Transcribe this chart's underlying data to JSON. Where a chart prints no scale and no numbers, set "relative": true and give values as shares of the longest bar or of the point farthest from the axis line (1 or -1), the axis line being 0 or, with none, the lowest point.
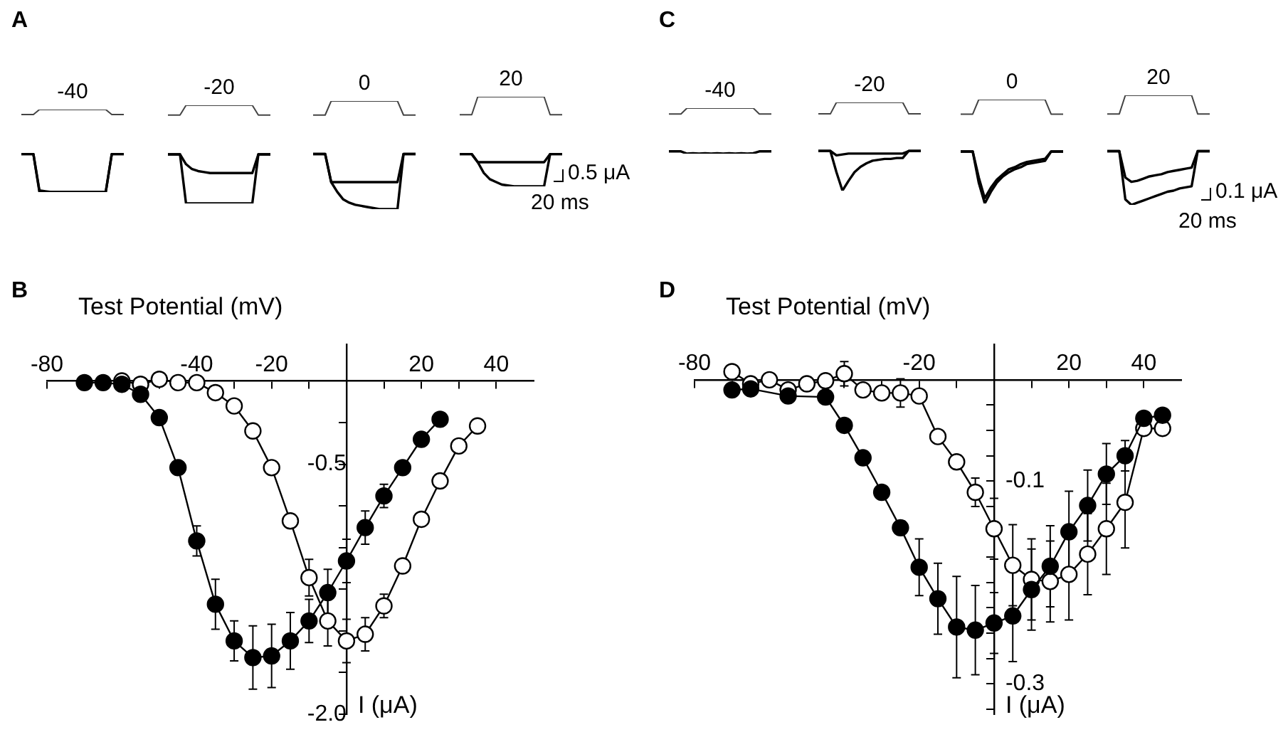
{
  "chart_data": [
    {
      "type": "line",
      "title": "A",
      "subtitle": "-40",
      "relative": true,
      "categories": [
        null,
        null,
        null,
        null,
        null,
        null,
        null,
        null,
        null,
        null,
        null,
        null,
        null,
        null,
        null,
        null,
        null,
        null
      ],
      "series": [
        {
          "color": "#444444",
          "values": [
            0.94,
            0.94,
            0.94,
            1,
            1,
            1,
            1,
            1,
            1,
            1,
            1,
            1,
            1,
            1,
            1,
            0.94,
            0.94,
            0.94
          ]
        },
        {
          "color": "#000000",
          "values": [
            0.46,
            0.46,
            0.46,
            0,
            0,
            0,
            0,
            0,
            0,
            0,
            0,
            0,
            0,
            0,
            0,
            0.46,
            0.46,
            0.46
          ]
        },
        {
          "color": "#000000",
          "values": [
            0.46,
            0.46,
            0.46,
            0.02,
            0.01,
            0,
            0,
            0,
            0,
            0,
            0,
            0,
            0,
            0,
            0,
            0.46,
            0.46,
            0.46
          ]
        }
      ]
    },
    {
      "type": "line",
      "subtitle": "-20",
      "relative": true,
      "categories": [
        null,
        null,
        null,
        null,
        null,
        null,
        null,
        null,
        null,
        null,
        null,
        null,
        null,
        null,
        null,
        null,
        null,
        null
      ],
      "series": [
        {
          "color": "#444444",
          "values": [
            0.9,
            0.9,
            0.9,
            1,
            1,
            1,
            1,
            1,
            1,
            1,
            1,
            1,
            1,
            1,
            1,
            0.9,
            0.9,
            0.9
          ]
        },
        {
          "color": "#000000",
          "values": [
            0.5,
            0.5,
            0.5,
            0,
            0,
            0,
            0,
            0,
            0,
            0,
            0,
            0,
            0,
            0,
            0,
            0.5,
            0.5,
            0.5
          ]
        },
        {
          "color": "#000000",
          "values": [
            0.5,
            0.5,
            0.5,
            0.4,
            0.35,
            0.33,
            0.32,
            0.31,
            0.31,
            0.31,
            0.31,
            0.31,
            0.31,
            0.31,
            0.31,
            0.5,
            0.5,
            0.5
          ]
        }
      ]
    },
    {
      "type": "line",
      "subtitle": "0",
      "relative": true,
      "categories": [
        null,
        null,
        null,
        null,
        null,
        null,
        null,
        null,
        null,
        null,
        null,
        null,
        null,
        null,
        null,
        null,
        null,
        null
      ],
      "series": [
        {
          "color": "#444444",
          "values": [
            0.87,
            0.87,
            0.87,
            1,
            1,
            1,
            1,
            1,
            1,
            1,
            1,
            1,
            1,
            1,
            1,
            0.87,
            0.87,
            0.87
          ]
        },
        {
          "color": "#000000",
          "values": [
            0.51,
            0.51,
            0.51,
            0.25,
            0.25,
            0.25,
            0.25,
            0.25,
            0.25,
            0.25,
            0.25,
            0.25,
            0.25,
            0.25,
            0.25,
            0.51,
            0.51,
            0.51
          ]
        },
        {
          "color": "#000000",
          "values": [
            0.51,
            0.51,
            0.51,
            0.25,
            0.16,
            0.09,
            0.06,
            0.04,
            0.03,
            0.02,
            0.01,
            0,
            0,
            0,
            0,
            0.51,
            0.51,
            0.51
          ]
        }
      ]
    },
    {
      "type": "line",
      "subtitle": "20",
      "relative": true,
      "annotations": [
        "0.5 μA",
        "20 ms"
      ],
      "categories": [
        null,
        null,
        null,
        null,
        null,
        null,
        null,
        null,
        null,
        null,
        null,
        null,
        null,
        null,
        null,
        null,
        null,
        null
      ],
      "series": [
        {
          "color": "#444444",
          "values": [
            0.8,
            0.8,
            0.8,
            1,
            1,
            1,
            1,
            1,
            1,
            1,
            1,
            1,
            1,
            1,
            1,
            0.8,
            0.8,
            0.8
          ]
        },
        {
          "color": "#000000",
          "values": [
            0.36,
            0.36,
            0.36,
            0.27,
            0.27,
            0.27,
            0.27,
            0.27,
            0.27,
            0.27,
            0.27,
            0.27,
            0.27,
            0.27,
            0.27,
            0.36,
            0.36,
            0.36
          ]
        },
        {
          "color": "#000000",
          "values": [
            0.36,
            0.36,
            0.36,
            0.27,
            0.15,
            0.08,
            0.05,
            0.02,
            0.01,
            0,
            0,
            0,
            0,
            0,
            0,
            0.36,
            0.36,
            0.36
          ]
        }
      ]
    },
    {
      "type": "line",
      "title": "C",
      "subtitle": "-40",
      "relative": true,
      "categories": [
        null,
        null,
        null,
        null,
        null,
        null,
        null,
        null,
        null,
        null,
        null,
        null,
        null,
        null,
        null,
        null,
        null,
        null
      ],
      "series": [
        {
          "color": "#444444",
          "values": [
            0.87,
            0.87,
            0.87,
            1,
            1,
            1,
            1,
            1,
            1,
            1,
            1,
            1,
            1,
            1,
            1,
            0.87,
            0.87,
            0.87
          ]
        },
        {
          "color": "#000000",
          "values": [
            0.05,
            0.05,
            0.05,
            0,
            0.01,
            0,
            0.01,
            0,
            0.01,
            0,
            0.01,
            0,
            0.01,
            0,
            0.01,
            0.05,
            0.05,
            0.05
          ]
        }
      ]
    },
    {
      "type": "line",
      "subtitle": "-20",
      "relative": true,
      "categories": [
        null,
        null,
        null,
        null,
        null,
        null,
        null,
        null,
        null,
        null,
        null,
        null,
        null,
        null,
        null,
        null,
        null,
        null
      ],
      "series": [
        {
          "color": "#444444",
          "values": [
            0.87,
            0.87,
            0.87,
            1,
            1,
            1,
            1,
            1,
            1,
            1,
            1,
            1,
            1,
            1,
            1,
            0.87,
            0.87,
            0.87
          ]
        },
        {
          "color": "#000000",
          "values": [
            0.45,
            0.45,
            0.45,
            0.21,
            0,
            0.11,
            0.21,
            0.27,
            0.31,
            0.34,
            0.35,
            0.36,
            0.36,
            0.37,
            0.37,
            0.45,
            0.45,
            0.45
          ]
        },
        {
          "color": "#000000",
          "values": [
            0.45,
            0.45,
            0.45,
            0.4,
            0.41,
            0.42,
            0.42,
            0.42,
            0.42,
            0.42,
            0.42,
            0.42,
            0.42,
            0.42,
            0.42,
            0.45,
            0.45,
            0.45
          ]
        }
      ]
    },
    {
      "type": "line",
      "subtitle": "0",
      "relative": true,
      "categories": [
        null,
        null,
        null,
        null,
        null,
        null,
        null,
        null,
        null,
        null,
        null,
        null,
        null,
        null,
        null,
        null,
        null,
        null
      ],
      "series": [
        {
          "color": "#444444",
          "values": [
            0.86,
            0.86,
            0.86,
            1,
            1,
            1,
            1,
            1,
            1,
            1,
            1,
            1,
            1,
            1,
            1,
            0.86,
            0.86,
            0.86
          ]
        },
        {
          "color": "#000000",
          "values": [
            0.5,
            0.5,
            0.5,
            0.2,
            0,
            0.11,
            0.2,
            0.26,
            0.3,
            0.33,
            0.35,
            0.38,
            0.39,
            0.4,
            0.41,
            0.5,
            0.5,
            0.5
          ]
        },
        {
          "color": "#000000",
          "values": [
            0.5,
            0.5,
            0.5,
            0.25,
            0.05,
            0.15,
            0.23,
            0.28,
            0.33,
            0.35,
            0.38,
            0.4,
            0.41,
            0.42,
            0.43,
            0.5,
            0.5,
            0.5
          ]
        }
      ]
    },
    {
      "type": "line",
      "subtitle": "20",
      "relative": true,
      "annotations": [
        "0.1 μA",
        "20 ms"
      ],
      "categories": [
        null,
        null,
        null,
        null,
        null,
        null,
        null,
        null,
        null,
        null,
        null,
        null,
        null,
        null,
        null,
        null,
        null,
        null
      ],
      "series": [
        {
          "color": "#444444",
          "values": [
            0.83,
            0.83,
            0.83,
            1,
            1,
            1,
            1,
            1,
            1,
            1,
            1,
            1,
            1,
            1,
            1,
            0.83,
            0.83,
            0.83
          ]
        },
        {
          "color": "#000000",
          "values": [
            0.49,
            0.49,
            0.49,
            0.05,
            0,
            0.02,
            0.04,
            0.06,
            0.08,
            0.1,
            0.12,
            0.13,
            0.15,
            0.16,
            0.17,
            0.49,
            0.49,
            0.49
          ]
        },
        {
          "color": "#000000",
          "values": [
            0.49,
            0.49,
            0.49,
            0.25,
            0.21,
            0.22,
            0.24,
            0.26,
            0.27,
            0.28,
            0.3,
            0.31,
            0.32,
            0.33,
            0.34,
            0.49,
            0.49,
            0.49
          ]
        }
      ]
    },
    {
      "type": "line",
      "title": "B",
      "xlabel": "Test Potential (mV)",
      "ylabel": "I (μA)",
      "marker": "circle",
      "xlim": [
        -80,
        50
      ],
      "xticks": [
        -80,
        {
          "value": -70,
          "label": null
        },
        {
          "value": -60,
          "label": null
        },
        {
          "value": -50,
          "label": null
        },
        -40,
        {
          "value": -30,
          "label": null
        },
        -20,
        {
          "value": -10,
          "label": null
        },
        {
          "value": 10,
          "label": null
        },
        20,
        {
          "value": 30,
          "label": null
        },
        40
      ],
      "ylim": [
        -2,
        0.22
      ],
      "yticks": [
        {
          "value": -2,
          "label": "-2.0"
        },
        {
          "value": -1.75,
          "label": null
        },
        {
          "value": -1.5,
          "label": null
        },
        {
          "value": -1.25,
          "label": null
        },
        {
          "value": -1,
          "label": null
        },
        {
          "value": -0.75,
          "label": null
        },
        -0.5,
        {
          "value": -0.25,
          "label": null
        }
      ],
      "series": [
        {
          "color": "#000000",
          "x": [
            -70,
            -65,
            -60,
            -55,
            -50,
            -45,
            -40,
            -35,
            -30,
            -25,
            -20,
            -15,
            -10,
            -5,
            0,
            5,
            10,
            15,
            20,
            25
          ],
          "values": [
            -0.01,
            -0.01,
            -0.02,
            -0.08,
            -0.22,
            -0.52,
            -0.96,
            -1.34,
            -1.56,
            -1.66,
            -1.65,
            -1.56,
            -1.44,
            -1.27,
            -1.08,
            -0.88,
            -0.69,
            -0.52,
            -0.35,
            -0.23
          ],
          "errors": [
            null,
            null,
            null,
            null,
            null,
            null,
            0.09,
            0.15,
            0.12,
            0.19,
            0.19,
            0.17,
            0.13,
            0.14,
            0.13,
            0.1,
            0.07,
            null,
            null,
            null
          ]
        },
        {
          "color": "#000000",
          "x": [
            -60,
            -55,
            -50,
            -45,
            -40,
            -35,
            -30,
            -25,
            -20,
            -15,
            -10,
            -5,
            0,
            5,
            10,
            15,
            20,
            25,
            30,
            35
          ],
          "values": [
            0,
            -0.02,
            0.01,
            -0.01,
            -0.01,
            -0.07,
            -0.15,
            -0.3,
            -0.52,
            -0.84,
            -1.18,
            -1.44,
            -1.56,
            -1.52,
            -1.35,
            -1.11,
            -0.83,
            -0.6,
            -0.39,
            -0.27
          ],
          "errors": [
            null,
            null,
            null,
            null,
            null,
            null,
            null,
            null,
            null,
            null,
            0.11,
            0.15,
            0.13,
            0.1,
            0.07,
            null,
            null,
            null,
            null,
            null
          ]
        }
      ]
    },
    {
      "type": "line",
      "title": "D",
      "xlabel": "Test Potential (mV)",
      "ylabel": "I (μA)",
      "marker": "circle",
      "xlim": [
        -80,
        50
      ],
      "xticks": [
        -80,
        {
          "value": -70,
          "label": null
        },
        {
          "value": -60,
          "label": null
        },
        {
          "value": -50,
          "label": null
        },
        {
          "value": -40,
          "label": null
        },
        {
          "value": -30,
          "label": null
        },
        -20,
        {
          "value": -10,
          "label": null
        },
        {
          "value": 10,
          "label": null
        },
        20,
        {
          "value": 30,
          "label": null
        },
        40
      ],
      "ylim": [
        -0.33,
        0.035
      ],
      "yticks": [
        {
          "value": -0.325,
          "label": null
        },
        -0.3,
        {
          "value": -0.275,
          "label": null
        },
        {
          "value": -0.25,
          "label": null
        },
        {
          "value": -0.225,
          "label": null
        },
        {
          "value": -0.2,
          "label": null
        },
        {
          "value": -0.175,
          "label": null
        },
        {
          "value": -0.15,
          "label": null
        },
        {
          "value": -0.125,
          "label": null
        },
        -0.1,
        {
          "value": -0.075,
          "label": null
        },
        {
          "value": -0.05,
          "label": null
        },
        {
          "value": -0.025,
          "label": null
        }
      ],
      "series": [
        {
          "color": "#000000",
          "x": [
            -70,
            -65,
            -55,
            -45,
            -40,
            -35,
            -30,
            -25,
            -20,
            -15,
            -10,
            -5,
            0,
            5,
            10,
            15,
            20,
            25,
            30,
            35,
            40,
            45
          ],
          "values": [
            -0.01,
            -0.009,
            -0.016,
            -0.017,
            -0.045,
            -0.077,
            -0.111,
            -0.146,
            -0.185,
            -0.216,
            -0.244,
            -0.247,
            -0.24,
            -0.233,
            -0.207,
            -0.184,
            -0.15,
            -0.124,
            -0.093,
            -0.075,
            -0.038,
            -0.035
          ],
          "errors": [
            null,
            null,
            null,
            null,
            null,
            null,
            null,
            null,
            0.028,
            0.035,
            0.05,
            0.044,
            0.03,
            0.045,
            0.04,
            0.04,
            0.04,
            0.035,
            0.03,
            0.015,
            null,
            null
          ]
        },
        {
          "color": "#000000",
          "x": [
            -70,
            -65,
            -60,
            -55,
            -50,
            -45,
            -40,
            -35,
            -30,
            -25,
            -20,
            -15,
            -10,
            -5,
            0,
            5,
            10,
            15,
            20,
            25,
            30,
            35,
            40,
            45
          ],
          "values": [
            0.008,
            -0.004,
            0,
            -0.01,
            -0.004,
            -0.001,
            0.006,
            -0.01,
            -0.013,
            -0.013,
            -0.016,
            -0.056,
            -0.081,
            -0.111,
            -0.147,
            -0.183,
            -0.197,
            -0.199,
            -0.192,
            -0.172,
            -0.147,
            -0.121,
            -0.048,
            -0.048
          ],
          "errors": [
            null,
            null,
            null,
            null,
            null,
            null,
            0.012,
            null,
            null,
            0.014,
            null,
            null,
            null,
            0.014,
            0.03,
            0.04,
            0.04,
            0.04,
            0.045,
            0.04,
            0.045,
            0.045,
            null,
            null
          ]
        }
      ]
    }
  ]
}
